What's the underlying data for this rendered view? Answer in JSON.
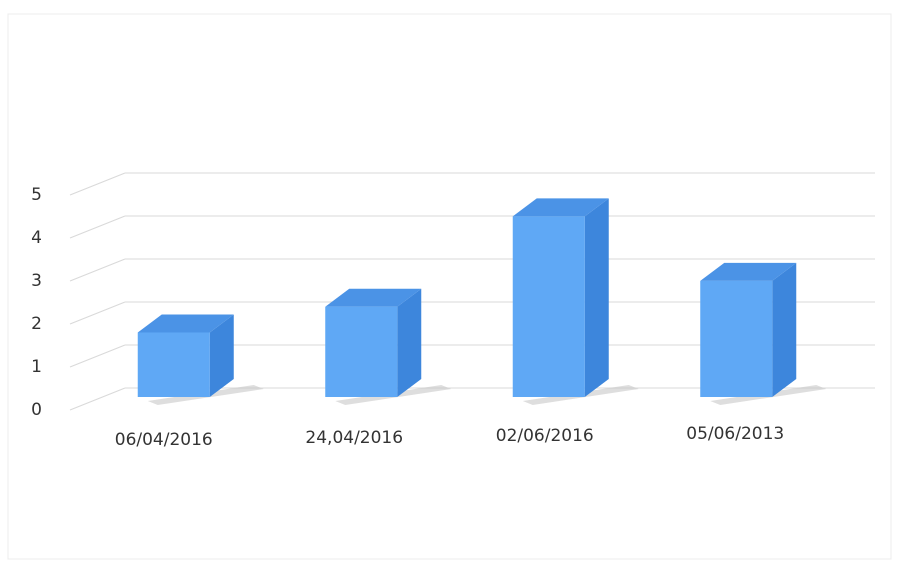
{
  "chart_data": {
    "type": "bar3d",
    "categories": [
      "06/04/2016",
      "24,04/2016",
      "02/06/2016",
      "05/06/2013"
    ],
    "values": [
      1.5,
      2.1,
      4.2,
      2.7
    ],
    "color": "#5fa8f5",
    "ylim": [
      0,
      5
    ],
    "yticks": [
      0,
      1,
      2,
      3,
      4,
      5
    ],
    "grid": true
  }
}
